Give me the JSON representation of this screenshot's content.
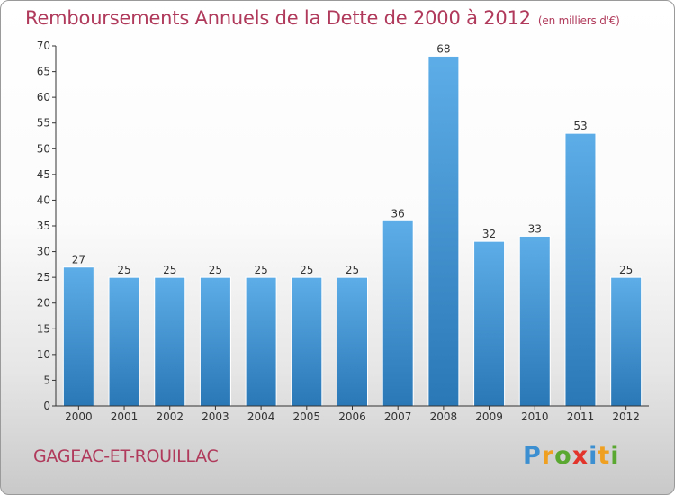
{
  "header": {
    "title": "Remboursements Annuels de la Dette de 2000 à 2012",
    "unit": "(en milliers d'€)"
  },
  "footer": {
    "commune": "GAGEAC-ET-ROUILLAC",
    "logo": [
      "P",
      "r",
      "o",
      "x",
      "i",
      "t",
      "i"
    ]
  },
  "colors": {
    "title": "#b03a5b",
    "bar_top": "#5dade8",
    "bar_bottom": "#2a78b6",
    "axis": "#333333"
  },
  "chart_data": {
    "type": "bar",
    "categories": [
      "2000",
      "2001",
      "2002",
      "2003",
      "2004",
      "2005",
      "2006",
      "2007",
      "2008",
      "2009",
      "2010",
      "2011",
      "2012"
    ],
    "values": [
      27,
      25,
      25,
      25,
      25,
      25,
      25,
      36,
      68,
      32,
      33,
      53,
      25
    ],
    "title": "Remboursements Annuels de la Dette de 2000 à 2012",
    "ylim": [
      0,
      70
    ],
    "yticks": [
      0,
      5,
      10,
      15,
      20,
      25,
      30,
      35,
      40,
      45,
      50,
      55,
      60,
      65,
      70
    ],
    "grid": false,
    "data_labels": true
  }
}
